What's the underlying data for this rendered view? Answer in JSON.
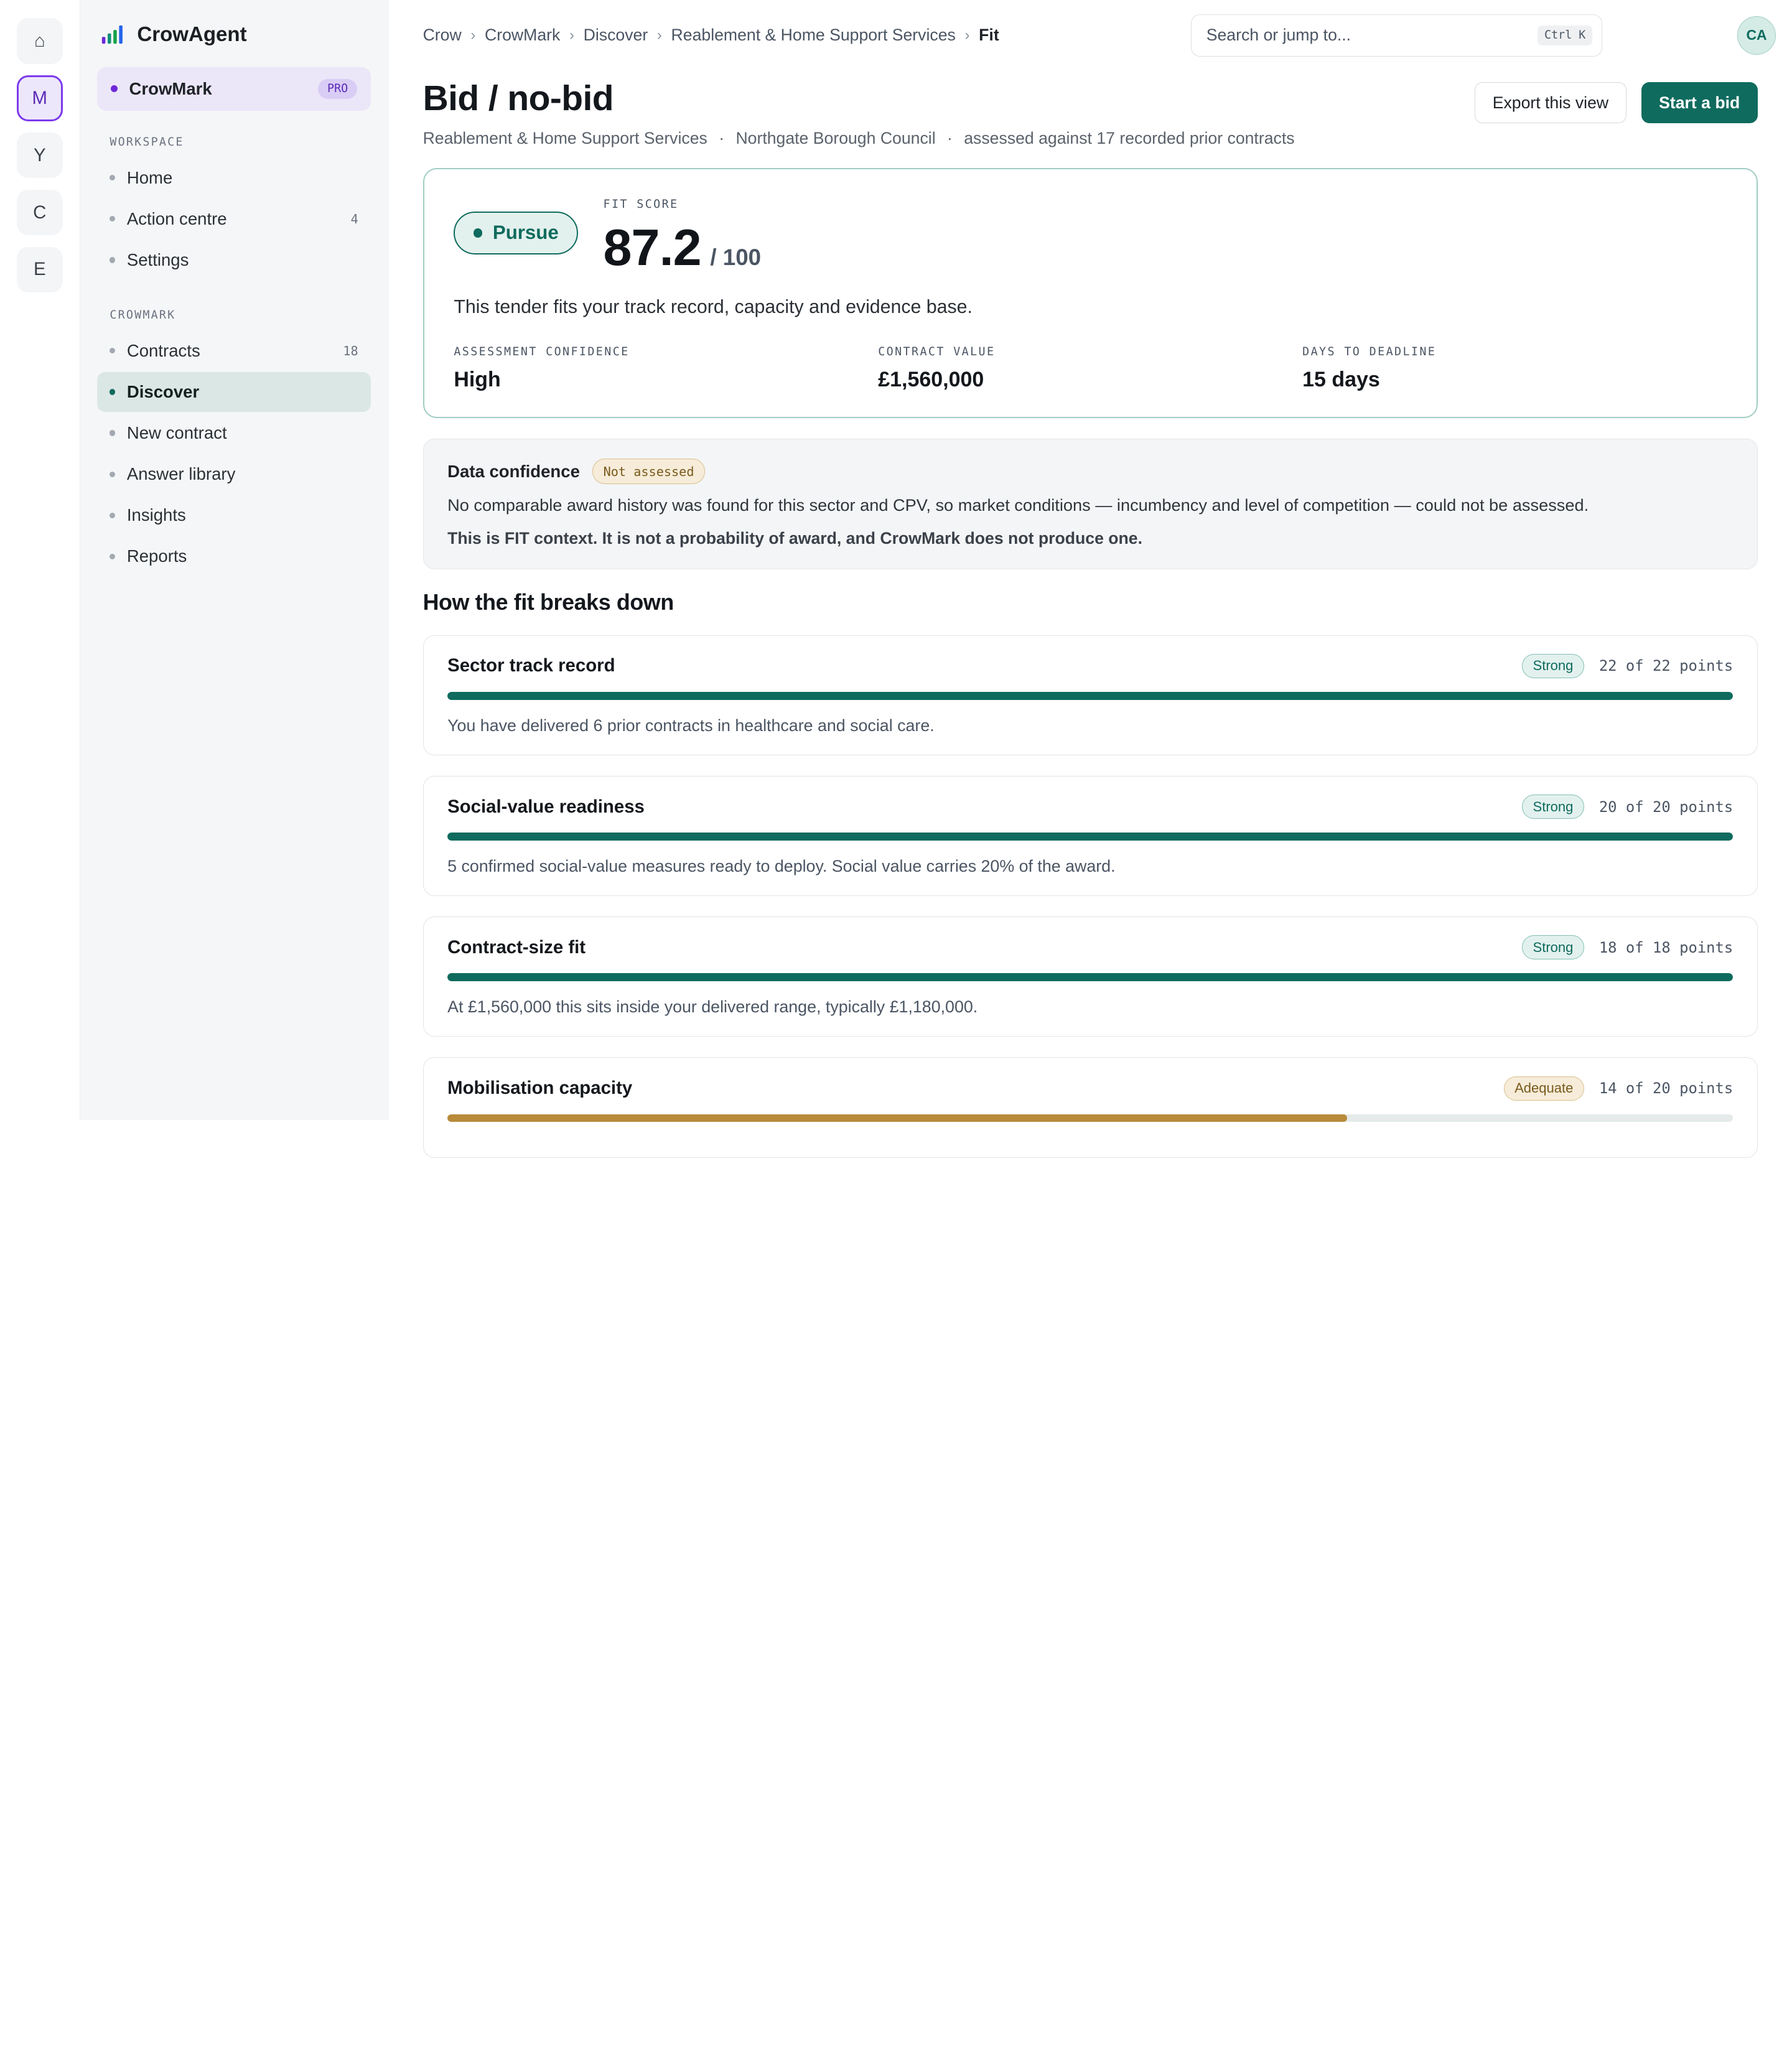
{
  "rail": {
    "items": [
      {
        "label": "⌂",
        "name": "home"
      },
      {
        "label": "M",
        "name": "crowmark"
      },
      {
        "label": "Y",
        "name": "y"
      },
      {
        "label": "C",
        "name": "c"
      },
      {
        "label": "E",
        "name": "e"
      }
    ]
  },
  "sidebar": {
    "brand": "CrowAgent",
    "workspace": {
      "name": "CrowMark",
      "badge": "PRO"
    },
    "sections": [
      {
        "label": "WORKSPACE",
        "items": [
          {
            "label": "Home",
            "count": ""
          },
          {
            "label": "Action centre",
            "count": "4"
          },
          {
            "label": "Settings",
            "count": ""
          }
        ]
      },
      {
        "label": "CROWMARK",
        "items": [
          {
            "label": "Contracts",
            "count": "18"
          },
          {
            "label": "Discover",
            "count": "",
            "active": true
          },
          {
            "label": "New contract",
            "count": ""
          },
          {
            "label": "Answer library",
            "count": ""
          },
          {
            "label": "Insights",
            "count": ""
          },
          {
            "label": "Reports",
            "count": ""
          }
        ]
      }
    ]
  },
  "topbar": {
    "breadcrumbs": [
      "Crow",
      "CrowMark",
      "Discover",
      "Reablement & Home Support Services",
      "Fit"
    ],
    "search_placeholder": "Search or jump to...",
    "search_shortcut": "Ctrl K",
    "avatar": "CA"
  },
  "header": {
    "title": "Bid / no-bid",
    "subtitle": [
      "Reablement & Home Support Services",
      "·",
      "Northgate Borough Council",
      "·",
      "assessed against 17 recorded prior contracts"
    ],
    "export_label": "Export this view",
    "start_label": "Start a bid"
  },
  "fit": {
    "verdict": "Pursue",
    "score_label": "FIT SCORE",
    "score": "87.2",
    "score_max": "/ 100",
    "description": "This tender fits your track record, capacity and evidence base.",
    "metrics": [
      {
        "label": "ASSESSMENT CONFIDENCE",
        "value": "High"
      },
      {
        "label": "CONTRACT VALUE",
        "value": "£1,560,000"
      },
      {
        "label": "DAYS TO DEADLINE",
        "value": "15 days"
      }
    ]
  },
  "confidence": {
    "title": "Data confidence",
    "badge": "Not assessed",
    "text": "No comparable award history was found for this sector and CPV, so market conditions — incumbency and level of competition — could not be assessed.",
    "note": "This is FIT context. It is not a probability of award, and CrowMark does not produce one."
  },
  "breakdown": {
    "heading": "How the fit breaks down",
    "items": [
      {
        "title": "Sector track record",
        "rating": "Strong",
        "points": "22 of 22 points",
        "fraction": 1.0,
        "description": "You have delivered 6 prior contracts in healthcare and social care."
      },
      {
        "title": "Social-value readiness",
        "rating": "Strong",
        "points": "20 of 20 points",
        "fraction": 1.0,
        "description": "5 confirmed social-value measures ready to deploy. Social value carries 20% of the award."
      },
      {
        "title": "Contract-size fit",
        "rating": "Strong",
        "points": "18 of 18 points",
        "fraction": 1.0,
        "description": "At £1,560,000 this sits inside your delivered range, typically £1,180,000."
      },
      {
        "title": "Mobilisation capacity",
        "rating": "Adequate",
        "points": "14 of 20 points",
        "fraction": 0.7,
        "description": ""
      }
    ]
  },
  "colors": {
    "accent": "#0f6b5e",
    "brand_purple": "#6d28d9",
    "amber": "#b88a3a"
  }
}
